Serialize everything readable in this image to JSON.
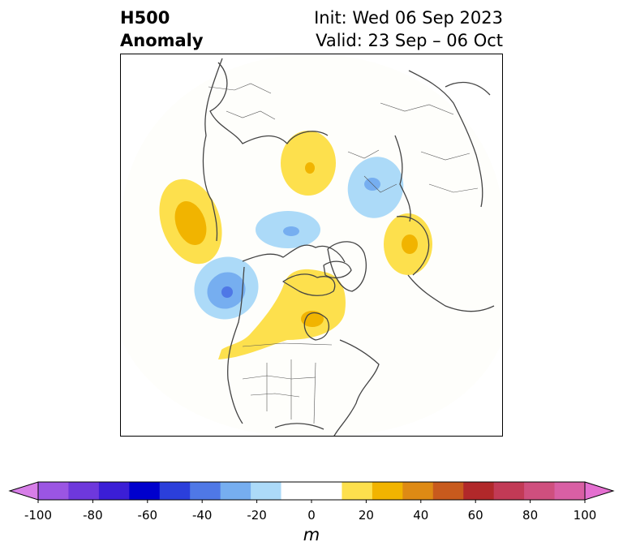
{
  "title": {
    "left_line1": "H500",
    "left_line2": "Anomaly",
    "right_line1": "Init: Wed 06 Sep 2023",
    "right_line2": "Valid: 23 Sep – 06 Oct"
  },
  "colorbar": {
    "unit": "m",
    "ticks": [
      "-100",
      "-80",
      "-60",
      "-40",
      "-20",
      "0",
      "20",
      "40",
      "60",
      "80",
      "100"
    ],
    "colors": [
      "#d77ee8",
      "#9b55e3",
      "#6e38dc",
      "#3b1ed6",
      "#0000cd",
      "#2b3fdb",
      "#4f78e6",
      "#76aef0",
      "#acdaf8",
      "#ffffff",
      "#ffffff",
      "#fde04d",
      "#f1b400",
      "#de8a14",
      "#c85a1d",
      "#b1282a",
      "#c23a56",
      "#cf4f7e",
      "#d95fa4",
      "#e46fd0"
    ]
  },
  "map": {
    "projection": "north-polar-stereographic",
    "anomalies": [
      {
        "region": "Northeast Pacific (west of Pacific Northwest)",
        "sign": "positive",
        "peak_m": 30
      },
      {
        "region": "Pacific south of Alaska",
        "sign": "negative",
        "peak_m": -50
      },
      {
        "region": "Chukchi / Beaufort Sea",
        "sign": "negative",
        "peak_m": -30
      },
      {
        "region": "Central Canada / Hudson Bay",
        "sign": "positive",
        "peak_m": 30
      },
      {
        "region": "Western Siberia",
        "sign": "negative",
        "peak_m": -40
      },
      {
        "region": "Scandinavia / Northwest Russia",
        "sign": "positive",
        "peak_m": 30
      },
      {
        "region": "Western Europe",
        "sign": "positive",
        "peak_m": 20
      }
    ]
  }
}
